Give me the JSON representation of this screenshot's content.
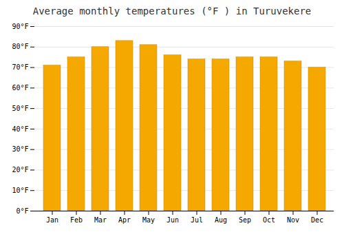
{
  "chart_data": {
    "type": "bar",
    "title": "Average monthly temperatures (°F ) in Turuvekere",
    "categories": [
      "Jan",
      "Feb",
      "Mar",
      "Apr",
      "May",
      "Jun",
      "Jul",
      "Aug",
      "Sep",
      "Oct",
      "Nov",
      "Dec"
    ],
    "values": [
      71,
      75,
      80,
      83,
      81,
      76,
      74,
      74,
      75,
      75,
      73,
      70
    ],
    "color": "#F5A800",
    "ylim": [
      0,
      90
    ],
    "yticks": [
      {
        "value": 0,
        "label": "0°F"
      },
      {
        "value": 10,
        "label": "10°F"
      },
      {
        "value": 20,
        "label": "20°F"
      },
      {
        "value": 30,
        "label": "30°F"
      },
      {
        "value": 40,
        "label": "40°F"
      },
      {
        "value": 50,
        "label": "50°F"
      },
      {
        "value": 60,
        "label": "60°F"
      },
      {
        "value": 70,
        "label": "70°F"
      },
      {
        "value": 80,
        "label": "80°F"
      },
      {
        "value": 90,
        "label": "90°F"
      }
    ],
    "grid": true
  }
}
